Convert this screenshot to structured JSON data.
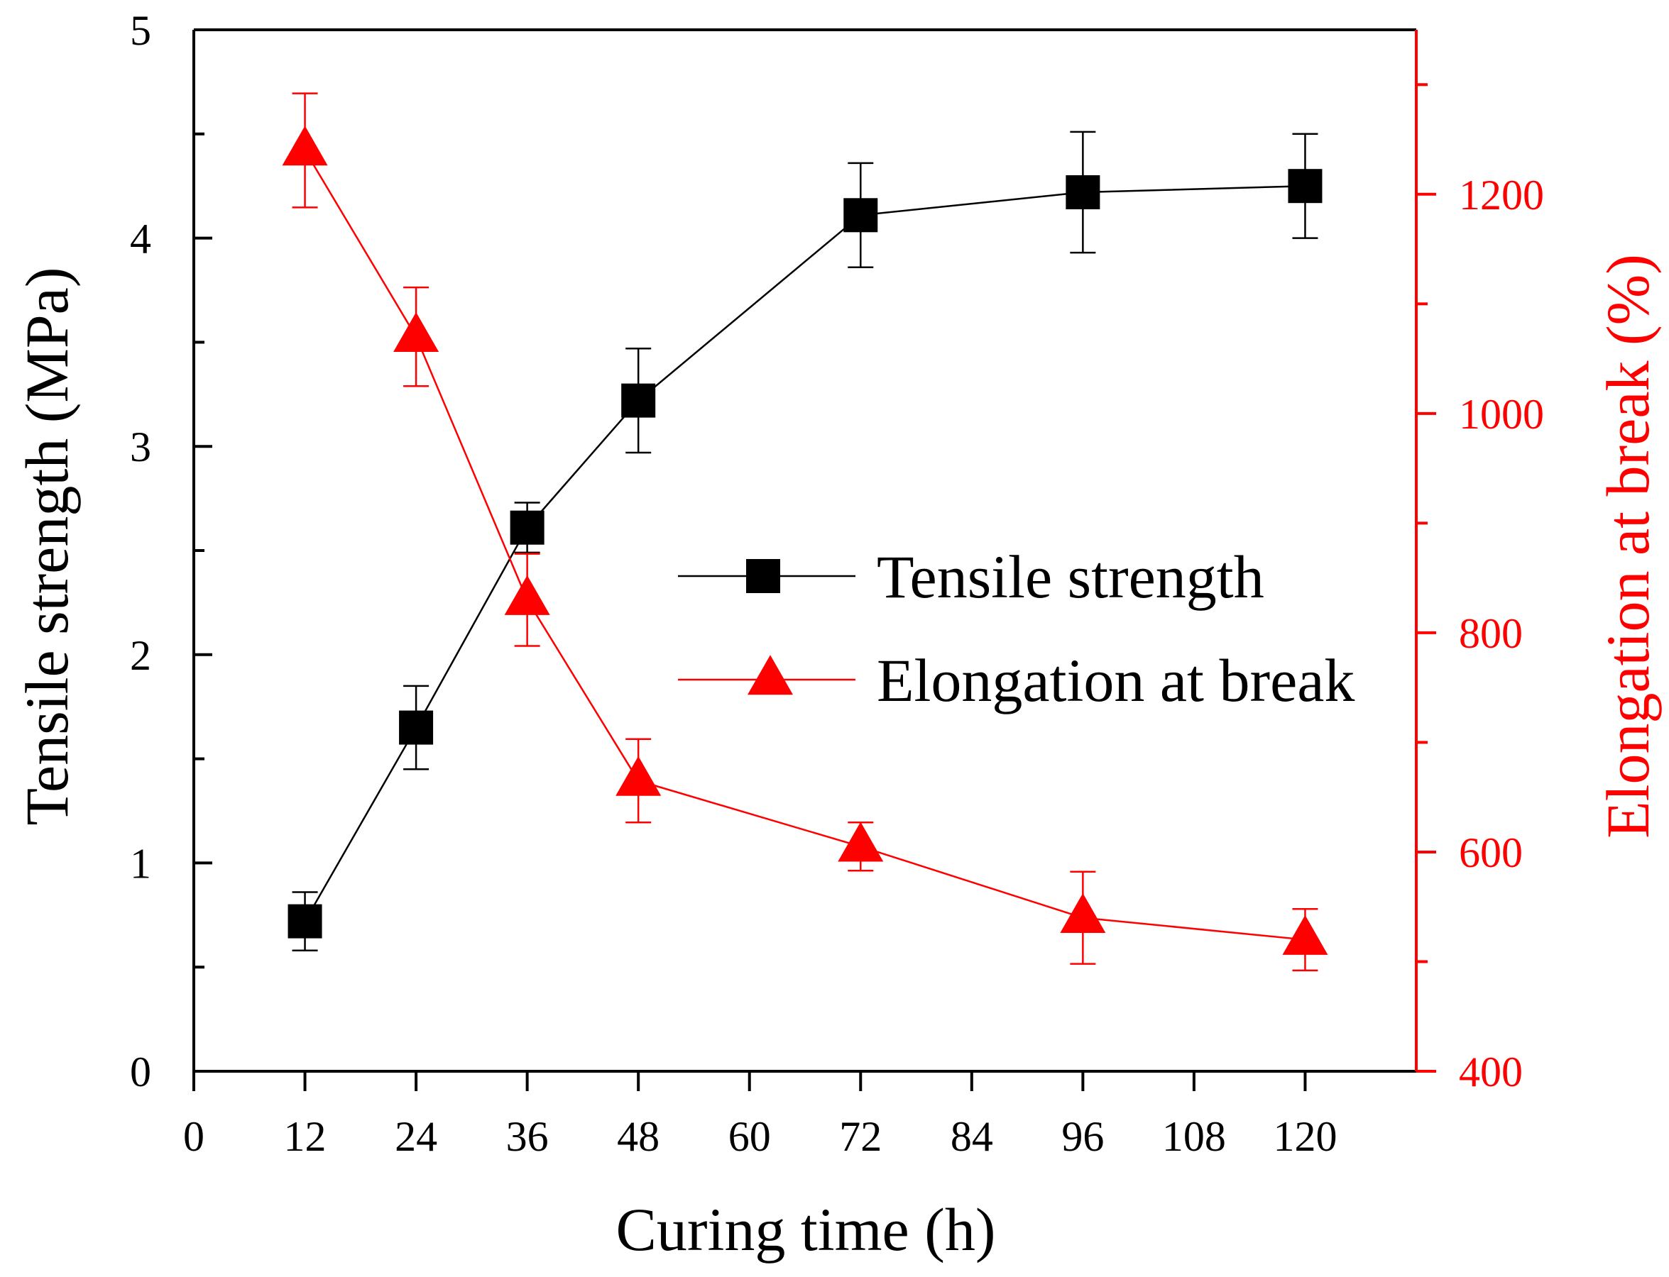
{
  "chart_data": {
    "type": "line",
    "xlabel": "Curing time (h)",
    "xlim": [
      0,
      132
    ],
    "x_ticks": [
      0,
      12,
      24,
      36,
      48,
      60,
      72,
      84,
      96,
      108,
      120
    ],
    "x_tick_labels": [
      "0",
      "12",
      "24",
      "36",
      "48",
      "60",
      "72",
      "84",
      "96",
      "108",
      "120"
    ],
    "y_left": {
      "label": "Tensile strength (MPa)",
      "lim": [
        0,
        5
      ],
      "ticks": [
        0,
        1,
        2,
        3,
        4,
        5
      ],
      "tick_labels": [
        "0",
        "1",
        "2",
        "3",
        "4",
        "5"
      ],
      "minor_ticks": [
        0.5,
        1.5,
        2.5,
        3.5,
        4.5
      ],
      "color": "#000000"
    },
    "y_right": {
      "label": "Elongation at break (%)",
      "lim": [
        400,
        1350
      ],
      "ticks": [
        400,
        600,
        800,
        1000,
        1200
      ],
      "tick_labels": [
        "400",
        "600",
        "800",
        "1000",
        "1200"
      ],
      "minor_ticks": [
        500,
        700,
        900,
        1100,
        1300
      ],
      "color": "#ff0000"
    },
    "legend": {
      "position": "center-right"
    },
    "series": [
      {
        "name": "Tensile strength",
        "axis": "left",
        "marker": "square",
        "color": "#000000",
        "x": [
          12,
          24,
          36,
          48,
          72,
          96,
          120
        ],
        "y": [
          0.72,
          1.65,
          2.61,
          3.22,
          4.11,
          4.22,
          4.25
        ],
        "err": [
          0.14,
          0.2,
          0.12,
          0.25,
          0.25,
          0.29,
          0.25
        ]
      },
      {
        "name": "Elongation at break",
        "axis": "right",
        "marker": "triangle",
        "color": "#ff0000",
        "x": [
          12,
          24,
          36,
          48,
          72,
          96,
          120
        ],
        "y": [
          1240,
          1070,
          830,
          665,
          605,
          540,
          520
        ],
        "err": [
          52,
          45,
          42,
          38,
          22,
          42,
          28
        ]
      }
    ]
  }
}
